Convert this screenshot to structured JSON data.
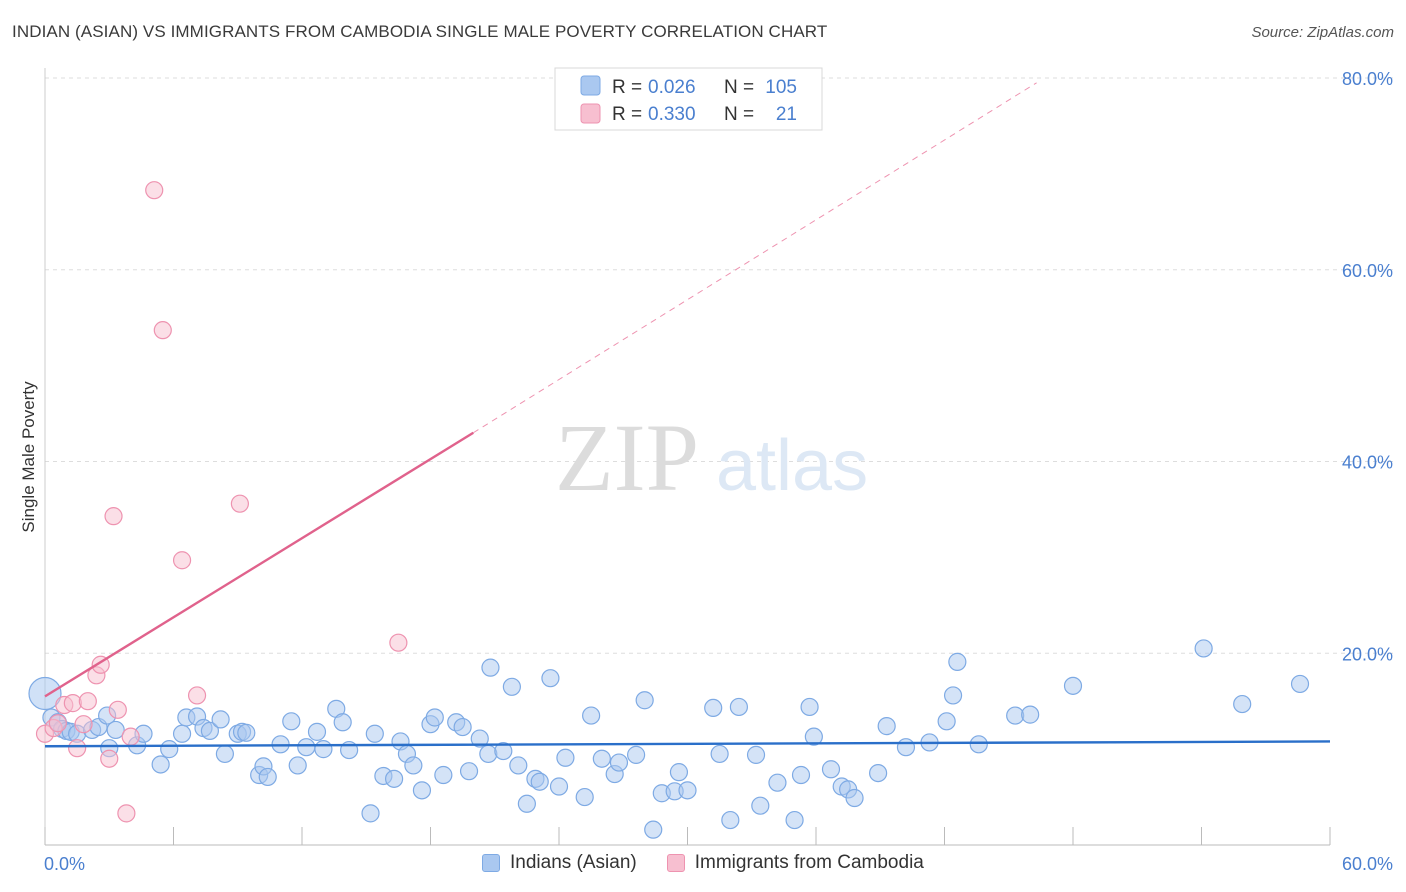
{
  "title": "INDIAN (ASIAN) VS IMMIGRANTS FROM CAMBODIA SINGLE MALE POVERTY CORRELATION CHART",
  "source": "Source: ZipAtlas.com",
  "watermark": {
    "zip": "ZIP",
    "atlas": "atlas"
  },
  "colors": {
    "blue_fill": "#aac8f0",
    "blue_stroke": "#7eaae4",
    "blue_line": "#2a6fc9",
    "pink_fill": "#f7bfd0",
    "pink_stroke": "#ee93b0",
    "pink_line": "#e0628c",
    "axis_label": "#4a7fcf",
    "grid": "#dddddd"
  },
  "legend_top": {
    "rows": [
      {
        "series": "blue",
        "r_label": "R = ",
        "r_value": "0.026",
        "n_label": "N = ",
        "n_value": "105"
      },
      {
        "series": "pink",
        "r_label": "R = ",
        "r_value": "0.330",
        "n_label": "N = ",
        "n_value": "21"
      }
    ]
  },
  "chart_data": {
    "type": "scatter",
    "title": "INDIAN (ASIAN) VS IMMIGRANTS FROM CAMBODIA SINGLE MALE POVERTY CORRELATION CHART",
    "xlabel": "",
    "ylabel": "Single Male Poverty",
    "xlim": [
      0,
      60
    ],
    "ylim": [
      0,
      80
    ],
    "x_tick_labels": [
      "0.0%",
      "60.0%"
    ],
    "y_ticks": [
      20,
      40,
      60,
      80
    ],
    "y_tick_labels": [
      "20.0%",
      "40.0%",
      "60.0%",
      "80.0%"
    ],
    "grid": true,
    "series": [
      {
        "name": "Indians (Asian)",
        "color": "blue",
        "trend": {
          "x": [
            0,
            60
          ],
          "y": [
            10.3,
            10.8
          ]
        },
        "points": [
          [
            0.0,
            15.8
          ],
          [
            0.3,
            13.3
          ],
          [
            0.6,
            12.8
          ],
          [
            0.8,
            12.1
          ],
          [
            1.0,
            11.9
          ],
          [
            1.2,
            11.8
          ],
          [
            1.5,
            11.6
          ],
          [
            2.2,
            12.0
          ],
          [
            2.5,
            12.3
          ],
          [
            2.9,
            13.5
          ],
          [
            3.0,
            10.1
          ],
          [
            3.3,
            12.0
          ],
          [
            4.3,
            10.4
          ],
          [
            4.6,
            11.6
          ],
          [
            5.4,
            8.4
          ],
          [
            5.8,
            10.0
          ],
          [
            6.4,
            11.6
          ],
          [
            6.6,
            13.3
          ],
          [
            7.1,
            13.4
          ],
          [
            7.4,
            12.2
          ],
          [
            7.7,
            11.9
          ],
          [
            8.2,
            13.1
          ],
          [
            8.4,
            9.5
          ],
          [
            9.0,
            11.6
          ],
          [
            9.2,
            11.8
          ],
          [
            9.4,
            11.7
          ],
          [
            10.0,
            7.3
          ],
          [
            10.2,
            8.2
          ],
          [
            10.4,
            7.1
          ],
          [
            11.0,
            10.5
          ],
          [
            11.5,
            12.9
          ],
          [
            11.8,
            8.3
          ],
          [
            12.2,
            10.2
          ],
          [
            12.7,
            11.8
          ],
          [
            13.0,
            10.0
          ],
          [
            13.6,
            14.2
          ],
          [
            13.9,
            12.8
          ],
          [
            14.2,
            9.9
          ],
          [
            15.2,
            3.3
          ],
          [
            15.4,
            11.6
          ],
          [
            15.8,
            7.2
          ],
          [
            16.3,
            6.9
          ],
          [
            16.6,
            10.8
          ],
          [
            16.9,
            9.5
          ],
          [
            17.2,
            8.3
          ],
          [
            17.6,
            5.7
          ],
          [
            18.0,
            12.6
          ],
          [
            18.2,
            13.3
          ],
          [
            18.6,
            7.3
          ],
          [
            19.2,
            12.8
          ],
          [
            19.5,
            12.3
          ],
          [
            19.8,
            7.7
          ],
          [
            20.3,
            11.1
          ],
          [
            20.7,
            9.5
          ],
          [
            20.8,
            18.5
          ],
          [
            21.4,
            9.8
          ],
          [
            21.8,
            16.5
          ],
          [
            22.1,
            8.3
          ],
          [
            22.5,
            4.3
          ],
          [
            22.9,
            6.9
          ],
          [
            23.1,
            6.6
          ],
          [
            23.6,
            17.4
          ],
          [
            24.0,
            6.1
          ],
          [
            24.3,
            9.1
          ],
          [
            25.2,
            5.0
          ],
          [
            25.5,
            13.5
          ],
          [
            26.0,
            9.0
          ],
          [
            26.6,
            7.4
          ],
          [
            26.8,
            8.6
          ],
          [
            27.6,
            9.4
          ],
          [
            28.0,
            15.1
          ],
          [
            28.4,
            1.6
          ],
          [
            28.8,
            5.4
          ],
          [
            29.4,
            5.6
          ],
          [
            29.6,
            7.6
          ],
          [
            30.0,
            5.7
          ],
          [
            31.2,
            14.3
          ],
          [
            31.5,
            9.5
          ],
          [
            32.0,
            2.6
          ],
          [
            32.4,
            14.4
          ],
          [
            33.2,
            9.4
          ],
          [
            33.4,
            4.1
          ],
          [
            34.2,
            6.5
          ],
          [
            35.0,
            2.6
          ],
          [
            35.3,
            7.3
          ],
          [
            35.7,
            14.4
          ],
          [
            35.9,
            11.3
          ],
          [
            36.7,
            7.9
          ],
          [
            37.2,
            6.1
          ],
          [
            37.5,
            5.8
          ],
          [
            37.8,
            4.9
          ],
          [
            38.9,
            7.5
          ],
          [
            39.3,
            12.4
          ],
          [
            40.2,
            10.2
          ],
          [
            41.3,
            10.7
          ],
          [
            42.1,
            12.9
          ],
          [
            42.4,
            15.6
          ],
          [
            42.6,
            19.1
          ],
          [
            43.6,
            10.5
          ],
          [
            45.3,
            13.5
          ],
          [
            46.0,
            13.6
          ],
          [
            48.0,
            16.6
          ],
          [
            54.1,
            20.5
          ],
          [
            55.9,
            14.7
          ],
          [
            58.6,
            16.8
          ]
        ]
      },
      {
        "name": "Immigrants from Cambodia",
        "color": "pink",
        "trend": {
          "x": [
            0,
            20
          ],
          "y": [
            15.5,
            43.0
          ]
        },
        "trend_extended": {
          "x": [
            20,
            46.3
          ],
          "y": [
            43.0,
            79.5
          ]
        },
        "points": [
          [
            0.0,
            11.6
          ],
          [
            0.4,
            12.2
          ],
          [
            0.6,
            12.7
          ],
          [
            0.9,
            14.6
          ],
          [
            1.3,
            14.8
          ],
          [
            1.5,
            10.1
          ],
          [
            1.8,
            12.6
          ],
          [
            2.0,
            15.0
          ],
          [
            2.4,
            17.7
          ],
          [
            2.6,
            18.8
          ],
          [
            3.0,
            9.0
          ],
          [
            3.2,
            34.3
          ],
          [
            3.4,
            14.1
          ],
          [
            3.8,
            3.3
          ],
          [
            4.0,
            11.3
          ],
          [
            5.1,
            68.3
          ],
          [
            5.5,
            53.7
          ],
          [
            6.4,
            29.7
          ],
          [
            7.1,
            15.6
          ],
          [
            9.1,
            35.6
          ],
          [
            16.5,
            21.1
          ]
        ]
      }
    ]
  }
}
